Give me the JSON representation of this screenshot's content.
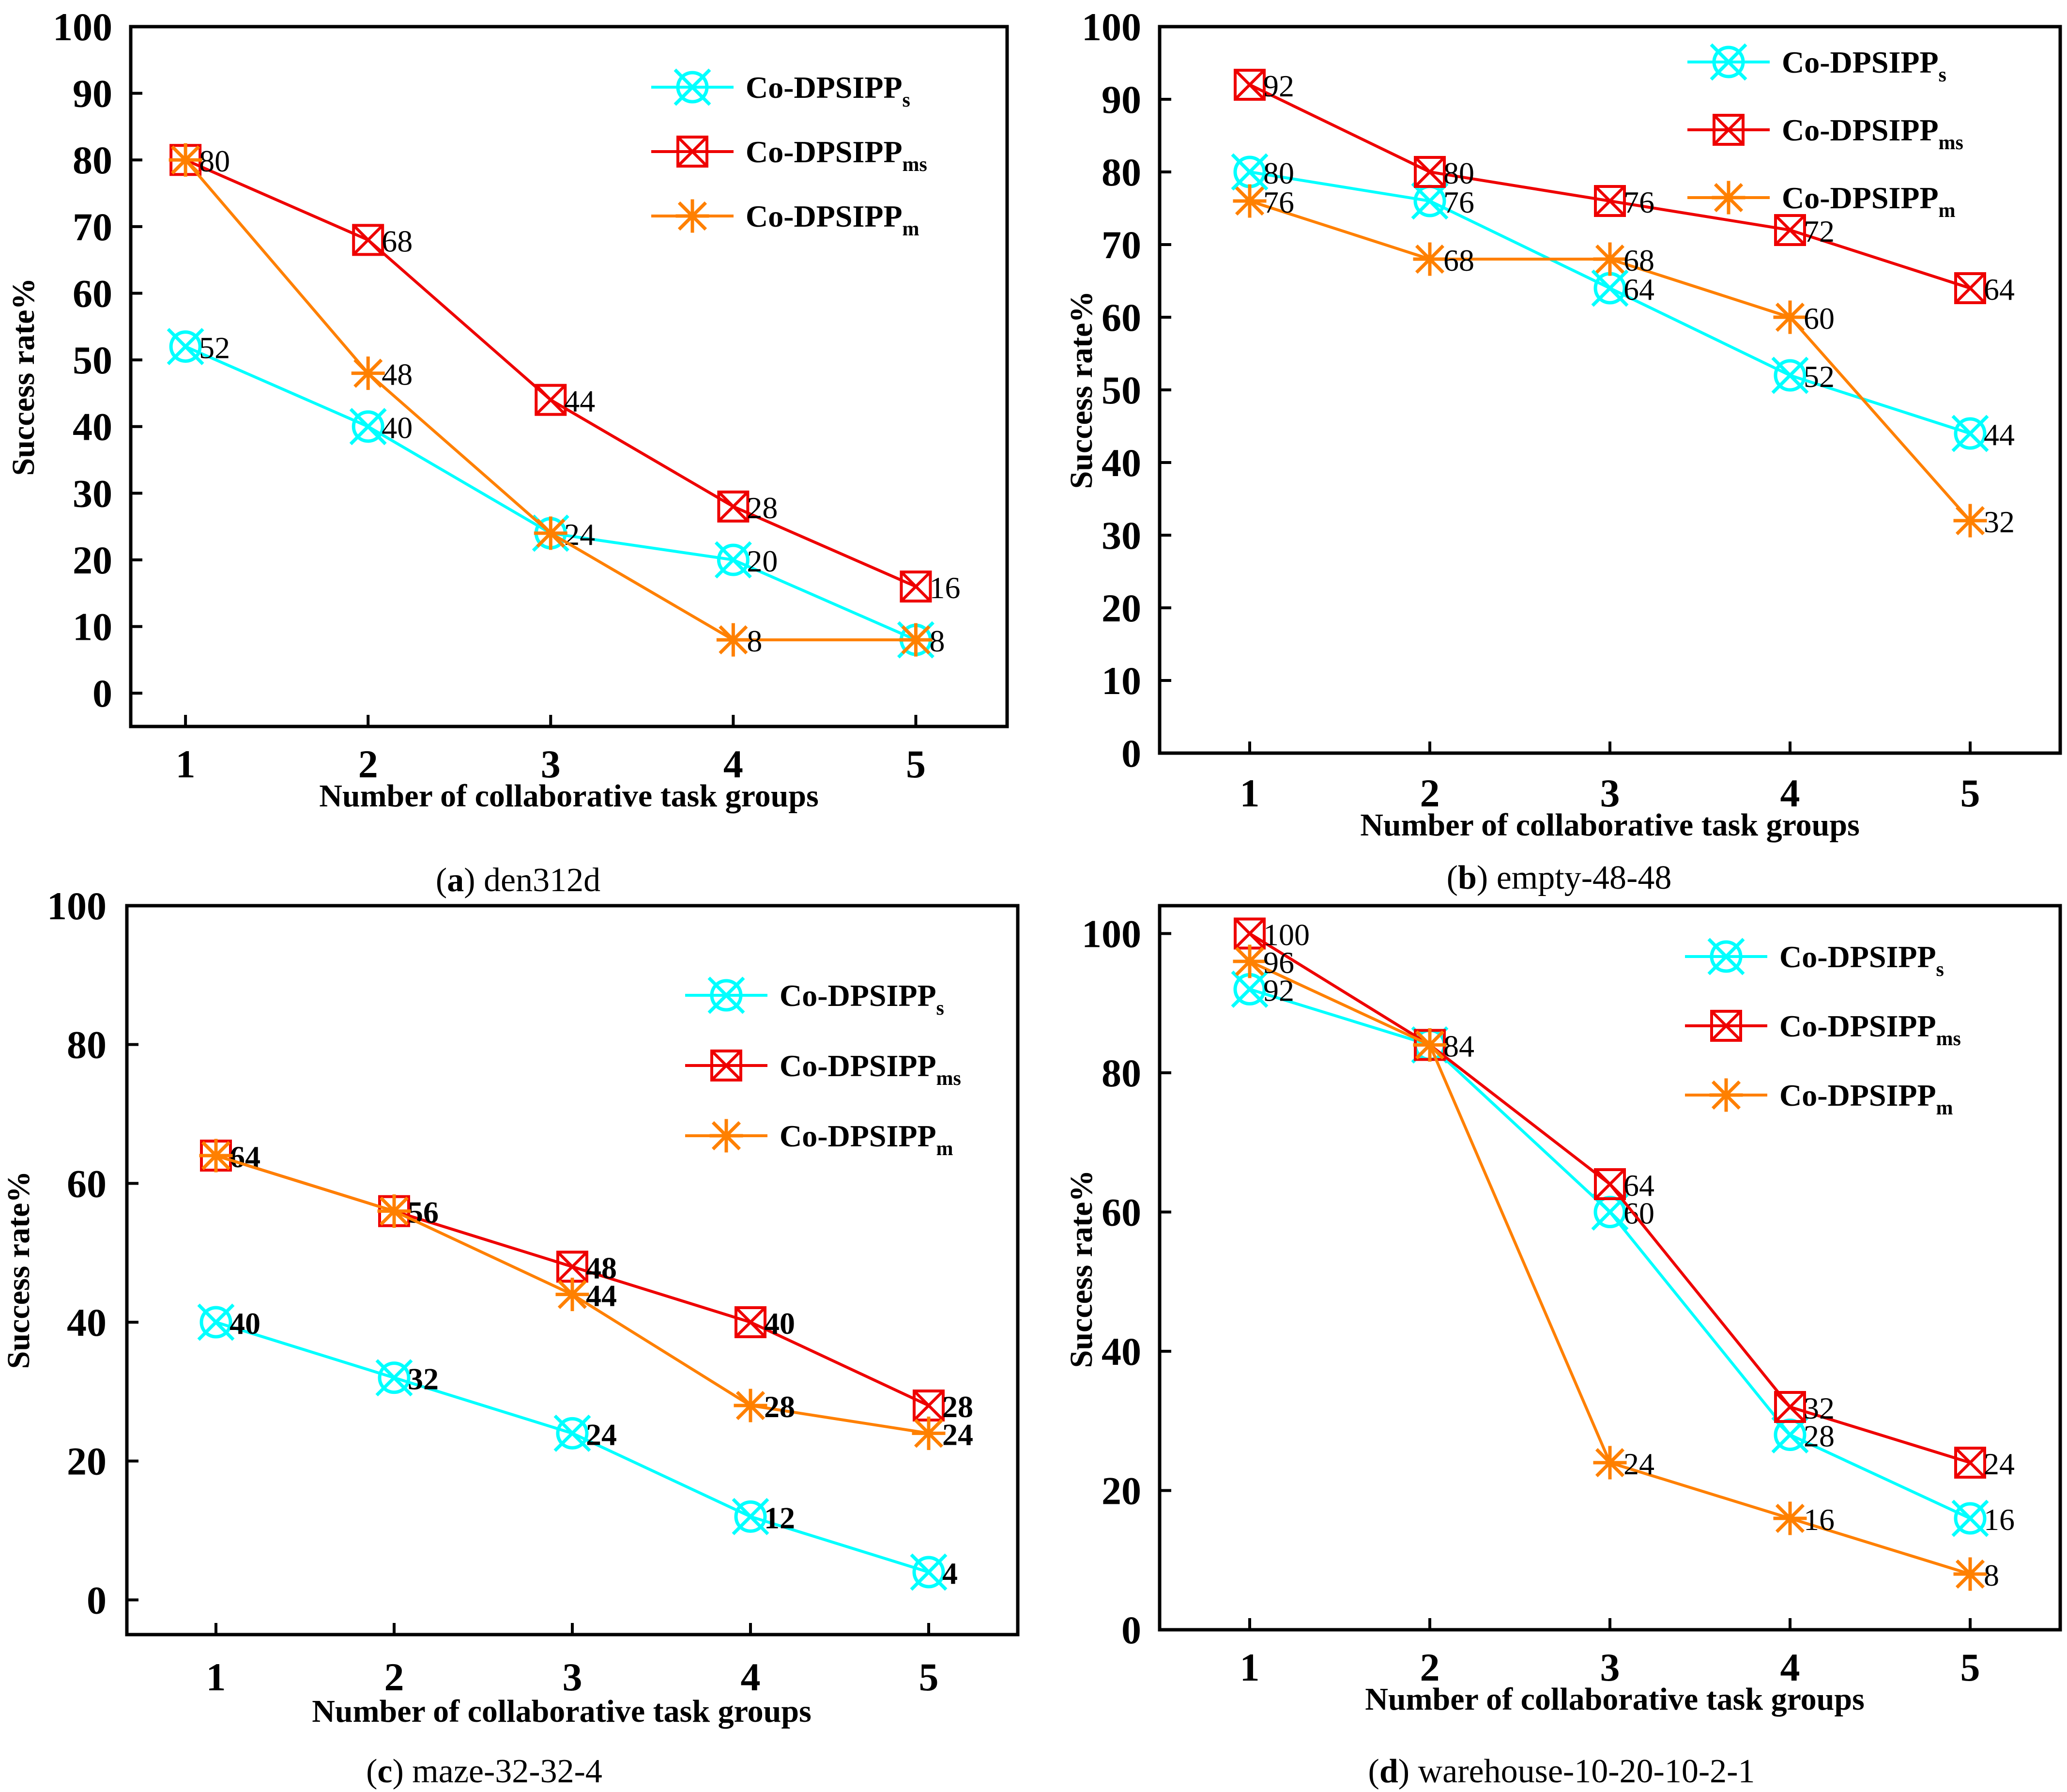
{
  "chart_data": [
    {
      "type": "line",
      "panel": "a",
      "caption_letter": "a",
      "caption_text": "den312d",
      "xlabel": "Number of collaborative task groups",
      "ylabel": "Success rate%",
      "x": [
        1,
        2,
        3,
        4,
        5
      ],
      "xticks": [
        1,
        2,
        3,
        4,
        5
      ],
      "yticks": [
        0,
        10,
        20,
        30,
        40,
        50,
        60,
        70,
        80,
        90,
        100
      ],
      "ylim": [
        -5,
        100
      ],
      "xlim": [
        0.7,
        5.5
      ],
      "legend_position": "top-right",
      "series": [
        {
          "name": "Co-DPSIPP",
          "sub": "s",
          "color": "#00ffff",
          "marker": "circle-x",
          "values": [
            52,
            40,
            24,
            20,
            8
          ],
          "labels": [
            "52",
            "40",
            "24",
            "20",
            "8"
          ],
          "labeled": [
            true,
            true,
            true,
            true,
            false
          ]
        },
        {
          "name": "Co-DPSIPP",
          "sub": "ms",
          "color": "#ee0000",
          "marker": "square-x",
          "values": [
            80,
            68,
            44,
            28,
            16
          ],
          "labels": [
            "80",
            "68",
            "44",
            "28",
            "16"
          ],
          "labeled": [
            true,
            true,
            true,
            true,
            true
          ]
        },
        {
          "name": "Co-DPSIPP",
          "sub": "m",
          "color": "#ff8000",
          "marker": "star",
          "values": [
            80,
            48,
            24,
            8,
            8
          ],
          "labels": [
            "80",
            "48",
            "24",
            "8",
            "8"
          ],
          "labeled": [
            false,
            true,
            false,
            true,
            true
          ]
        }
      ]
    },
    {
      "type": "line",
      "panel": "b",
      "caption_letter": "b",
      "caption_text": "empty-48-48",
      "xlabel": "Number of collaborative task groups",
      "ylabel": "Success rate%",
      "x": [
        1,
        2,
        3,
        4,
        5
      ],
      "xticks": [
        1,
        2,
        3,
        4,
        5
      ],
      "yticks": [
        0,
        10,
        20,
        30,
        40,
        50,
        60,
        70,
        80,
        90,
        100
      ],
      "ylim": [
        0,
        100
      ],
      "xlim": [
        0.5,
        5.5
      ],
      "legend_position": "top-right",
      "series": [
        {
          "name": "Co-DPSIPP",
          "sub": "s",
          "color": "#00ffff",
          "marker": "circle-x",
          "values": [
            80,
            76,
            64,
            52,
            44
          ],
          "labels": [
            "80",
            "76",
            "64",
            "52",
            "44"
          ],
          "labeled": [
            true,
            true,
            true,
            true,
            true
          ]
        },
        {
          "name": "Co-DPSIPP",
          "sub": "ms",
          "color": "#ee0000",
          "marker": "square-x",
          "values": [
            92,
            80,
            76,
            72,
            64
          ],
          "labels": [
            "92",
            "80",
            "76",
            "72",
            "64"
          ],
          "labeled": [
            true,
            true,
            true,
            true,
            true
          ]
        },
        {
          "name": "Co-DPSIPP",
          "sub": "m",
          "color": "#ff8000",
          "marker": "star",
          "values": [
            76,
            68,
            68,
            60,
            32
          ],
          "labels": [
            "76",
            "68",
            "68",
            "60",
            "32"
          ],
          "labeled": [
            true,
            true,
            true,
            true,
            true
          ]
        }
      ]
    },
    {
      "type": "line",
      "panel": "c",
      "caption_letter": "c",
      "caption_text": "maze-32-32-4",
      "xlabel": "Number of collaborative task groups",
      "ylabel": "Success rate%",
      "x": [
        1,
        2,
        3,
        4,
        5
      ],
      "xticks": [
        1,
        2,
        3,
        4,
        5
      ],
      "yticks": [
        0,
        20,
        40,
        60,
        80,
        100
      ],
      "ylim": [
        -5,
        100
      ],
      "xlim": [
        0.5,
        5.5
      ],
      "legend_position": "top-right",
      "series": [
        {
          "name": "Co-DPSIPP",
          "sub": "s",
          "color": "#00ffff",
          "marker": "circle-x",
          "values": [
            40,
            32,
            24,
            12,
            4
          ],
          "labels": [
            "40",
            "32",
            "24",
            "12",
            "4"
          ],
          "labeled": [
            true,
            true,
            true,
            true,
            true
          ]
        },
        {
          "name": "Co-DPSIPP",
          "sub": "ms",
          "color": "#ee0000",
          "marker": "square-x",
          "values": [
            64,
            56,
            48,
            40,
            28
          ],
          "labels": [
            "64",
            "56",
            "48",
            "40",
            "28"
          ],
          "labeled": [
            true,
            true,
            true,
            true,
            true
          ]
        },
        {
          "name": "Co-DPSIPP",
          "sub": "m",
          "color": "#ff8000",
          "marker": "star",
          "values": [
            64,
            56,
            44,
            28,
            24
          ],
          "labels": [
            "64",
            "56",
            "44",
            "28",
            "24"
          ],
          "labeled": [
            false,
            false,
            true,
            true,
            true
          ]
        }
      ]
    },
    {
      "type": "line",
      "panel": "d",
      "caption_letter": "d",
      "caption_text": "warehouse-10-20-10-2-1",
      "xlabel": "Number of collaborative task groups",
      "ylabel": "Success rate%",
      "x": [
        1,
        2,
        3,
        4,
        5
      ],
      "xticks": [
        1,
        2,
        3,
        4,
        5
      ],
      "yticks": [
        0,
        20,
        40,
        60,
        80,
        100
      ],
      "ylim": [
        0,
        104
      ],
      "xlim": [
        0.5,
        5.5
      ],
      "legend_position": "top-right",
      "series": [
        {
          "name": "Co-DPSIPP",
          "sub": "s",
          "color": "#00ffff",
          "marker": "circle-x",
          "values": [
            92,
            84,
            60,
            28,
            16
          ],
          "labels": [
            "92",
            "84",
            "60",
            "28",
            "16"
          ],
          "labeled": [
            true,
            false,
            true,
            true,
            true
          ]
        },
        {
          "name": "Co-DPSIPP",
          "sub": "ms",
          "color": "#ee0000",
          "marker": "square-x",
          "values": [
            100,
            84,
            64,
            32,
            24
          ],
          "labels": [
            "100",
            "84",
            "64",
            "32",
            "24"
          ],
          "labeled": [
            true,
            true,
            true,
            true,
            true
          ]
        },
        {
          "name": "Co-DPSIPP",
          "sub": "m",
          "color": "#ff8000",
          "marker": "star",
          "values": [
            96,
            84,
            24,
            16,
            8
          ],
          "labels": [
            "96",
            "84",
            "24",
            "16",
            "8"
          ],
          "labeled": [
            true,
            false,
            true,
            true,
            true
          ]
        }
      ]
    }
  ]
}
